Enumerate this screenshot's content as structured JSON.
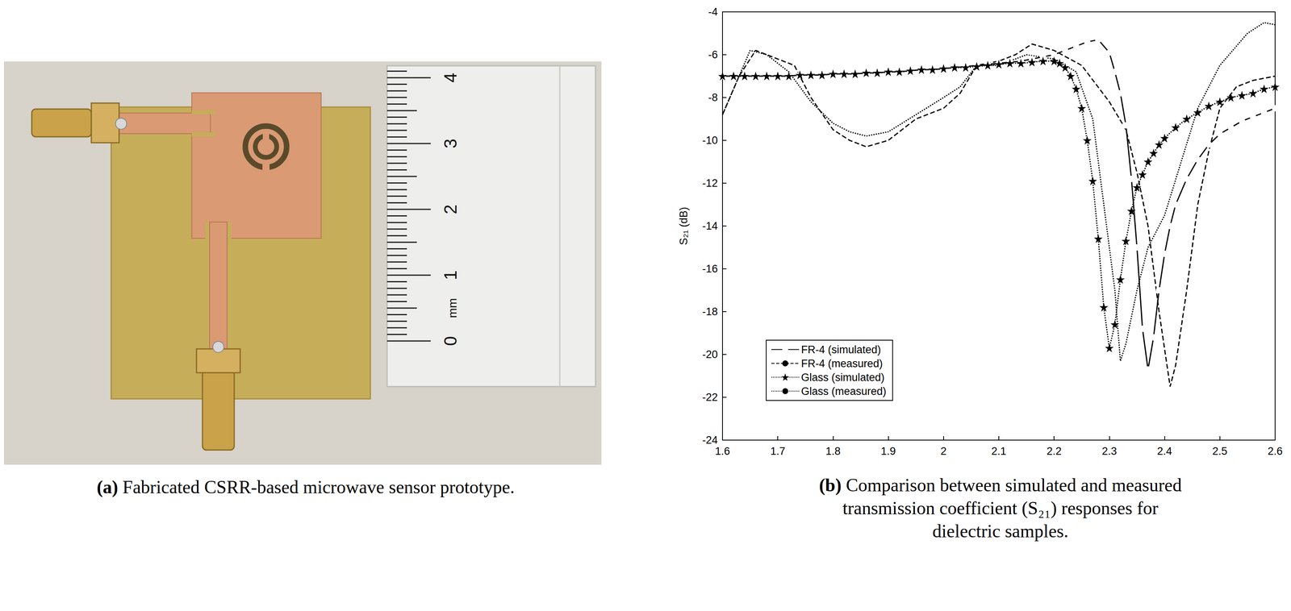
{
  "figure": {
    "panel_a": {
      "label": "(a)",
      "caption": "Fabricated CSRR-based microwave sensor prototype.",
      "ruler": {
        "ticks": [
          0,
          1,
          2,
          3,
          4
        ],
        "unit": "mm"
      }
    },
    "panel_b": {
      "label": "(b)",
      "caption": "Comparison between simulated and measured transmission coefficient (S₂₁) responses for dielectric samples."
    }
  },
  "chart_data": {
    "type": "line",
    "y_label": "S₂₁ (dB)",
    "xlim": [
      1.6,
      2.6
    ],
    "xticks": [
      1.6,
      1.7,
      1.8,
      1.9,
      2,
      2.1,
      2.2,
      2.3,
      2.4,
      2.5,
      2.6
    ],
    "ylim": [
      -24,
      -4
    ],
    "yticks": [
      -24,
      -22,
      -20,
      -18,
      -16,
      -14,
      -12,
      -10,
      -8,
      -6,
      -4
    ],
    "grid": false,
    "legend": "lower left",
    "series": [
      {
        "name": "FR-4 (simulated)",
        "color": "#000000",
        "marker": "circle",
        "line_style": "solid",
        "x": [
          1.6,
          1.62,
          1.64,
          1.66,
          1.68,
          1.7,
          1.72,
          1.74,
          1.76,
          1.78,
          1.8,
          1.82,
          1.84,
          1.86,
          1.88,
          1.9,
          1.92,
          1.94,
          1.96,
          1.98,
          2.0,
          2.02,
          2.04,
          2.06,
          2.08,
          2.1,
          2.12,
          2.14,
          2.16,
          2.18,
          2.2,
          2.22,
          2.24,
          2.26,
          2.28,
          2.3,
          2.31,
          2.32,
          2.33,
          2.34,
          2.35,
          2.36,
          2.37,
          2.38,
          2.39,
          2.4,
          2.41,
          2.42,
          2.44,
          2.46,
          2.48,
          2.5,
          2.52,
          2.54,
          2.56,
          2.58,
          2.6
        ],
        "values": [
          -7.0,
          -7.0,
          -7.0,
          -7.0,
          -7.0,
          -7.0,
          -7.0,
          -6.95,
          -6.95,
          -6.95,
          -6.9,
          -6.9,
          -6.9,
          -6.85,
          -6.85,
          -6.8,
          -6.8,
          -6.75,
          -6.7,
          -6.7,
          -6.65,
          -6.6,
          -6.55,
          -6.5,
          -6.45,
          -6.4,
          -6.35,
          -6.3,
          -6.2,
          -6.1,
          -6.0,
          -5.8,
          -5.6,
          -5.4,
          -5.3,
          -5.9,
          -6.8,
          -7.8,
          -9.3,
          -11.8,
          -15.0,
          -18.8,
          -20.7,
          -19.2,
          -17.0,
          -15.3,
          -14.0,
          -13.0,
          -11.8,
          -10.9,
          -10.2,
          -9.7,
          -9.4,
          -9.1,
          -8.9,
          -8.7,
          -8.5
        ]
      },
      {
        "name": "FR-4 (measured)",
        "color": "#000000",
        "marker": "none",
        "line_style": "dashed",
        "x": [
          1.6,
          1.63,
          1.66,
          1.7,
          1.73,
          1.76,
          1.8,
          1.83,
          1.86,
          1.9,
          1.95,
          2.0,
          2.03,
          2.06,
          2.1,
          2.13,
          2.16,
          2.2,
          2.25,
          2.3,
          2.33,
          2.35,
          2.37,
          2.39,
          2.41,
          2.42,
          2.44,
          2.46,
          2.48,
          2.5,
          2.53,
          2.56,
          2.6
        ],
        "values": [
          -8.8,
          -7.0,
          -5.8,
          -6.2,
          -6.5,
          -8.0,
          -9.5,
          -10.0,
          -10.3,
          -10.0,
          -9.0,
          -8.5,
          -7.8,
          -6.5,
          -6.3,
          -6.0,
          -5.5,
          -5.8,
          -6.5,
          -8.2,
          -9.5,
          -11.5,
          -14.0,
          -18.0,
          -21.5,
          -20.5,
          -17.0,
          -13.0,
          -10.5,
          -8.5,
          -7.5,
          -7.2,
          -7.0
        ]
      },
      {
        "name": "Glass (simulated)",
        "color": "#000000",
        "marker": "star",
        "line_style": "dotted",
        "x": [
          1.6,
          1.62,
          1.64,
          1.66,
          1.68,
          1.7,
          1.72,
          1.74,
          1.76,
          1.78,
          1.8,
          1.82,
          1.84,
          1.86,
          1.88,
          1.9,
          1.92,
          1.94,
          1.96,
          1.98,
          2.0,
          2.02,
          2.04,
          2.06,
          2.08,
          2.1,
          2.12,
          2.14,
          2.16,
          2.18,
          2.2,
          2.21,
          2.22,
          2.23,
          2.24,
          2.25,
          2.26,
          2.27,
          2.28,
          2.29,
          2.3,
          2.31,
          2.32,
          2.33,
          2.34,
          2.35,
          2.36,
          2.37,
          2.38,
          2.39,
          2.4,
          2.42,
          2.44,
          2.46,
          2.48,
          2.5,
          2.52,
          2.54,
          2.56,
          2.58,
          2.6
        ],
        "values": [
          -7.0,
          -7.0,
          -7.0,
          -7.0,
          -7.0,
          -7.0,
          -7.0,
          -6.95,
          -6.95,
          -6.95,
          -6.9,
          -6.9,
          -6.9,
          -6.85,
          -6.85,
          -6.8,
          -6.8,
          -6.75,
          -6.7,
          -6.7,
          -6.65,
          -6.6,
          -6.6,
          -6.55,
          -6.5,
          -6.45,
          -6.4,
          -6.4,
          -6.35,
          -6.3,
          -6.3,
          -6.4,
          -6.6,
          -7.0,
          -7.6,
          -8.5,
          -10.0,
          -11.9,
          -14.6,
          -17.8,
          -19.7,
          -18.6,
          -16.5,
          -14.7,
          -13.3,
          -12.2,
          -11.6,
          -11.0,
          -10.6,
          -10.2,
          -9.9,
          -9.4,
          -9.0,
          -8.7,
          -8.4,
          -8.2,
          -8.0,
          -7.9,
          -7.8,
          -7.6,
          -7.5
        ]
      },
      {
        "name": "Glass (measured)",
        "color": "#000000",
        "marker": "none",
        "line_style": "dotted",
        "x": [
          1.6,
          1.63,
          1.65,
          1.68,
          1.72,
          1.76,
          1.8,
          1.83,
          1.86,
          1.9,
          1.95,
          2.0,
          2.03,
          2.06,
          2.1,
          2.15,
          2.2,
          2.24,
          2.27,
          2.29,
          2.31,
          2.32,
          2.33,
          2.35,
          2.37,
          2.4,
          2.43,
          2.46,
          2.5,
          2.55,
          2.58,
          2.6
        ],
        "values": [
          -8.8,
          -7.0,
          -5.8,
          -6.0,
          -6.8,
          -8.2,
          -9.2,
          -9.6,
          -9.8,
          -9.6,
          -8.8,
          -8.0,
          -7.5,
          -6.5,
          -6.5,
          -6.0,
          -6.2,
          -6.8,
          -9.0,
          -13.0,
          -17.0,
          -20.3,
          -19.5,
          -17.0,
          -15.0,
          -13.5,
          -11.0,
          -8.5,
          -6.5,
          -5.0,
          -4.5,
          -4.6
        ]
      }
    ]
  }
}
